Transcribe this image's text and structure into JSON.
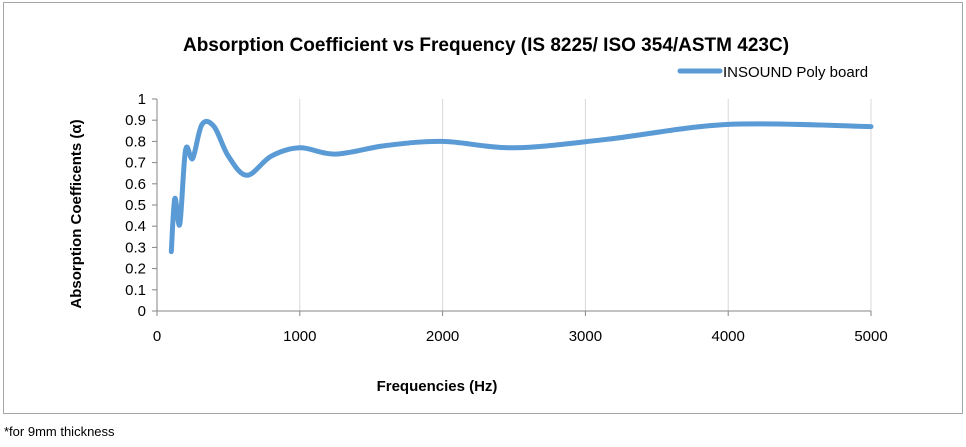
{
  "footnote": "*for 9mm thickness",
  "chart_data": {
    "type": "line",
    "title": "Absorption Coefficient vs Frequency (IS 8225/ ISO 354/ASTM 423C)",
    "xlabel": "Frequencies (Hz)",
    "ylabel": "Absorption  Coefficents (α)",
    "xlim": [
      0,
      5000
    ],
    "ylim": [
      0,
      1
    ],
    "xticks": [
      0,
      1000,
      2000,
      3000,
      4000,
      5000
    ],
    "yticks": [
      0,
      0.1,
      0.2,
      0.3,
      0.4,
      0.5,
      0.6,
      0.7,
      0.8,
      0.9,
      1
    ],
    "ytick_labels": [
      "0",
      "0.1",
      "0.2",
      "0.3",
      "0.4",
      "0.5",
      "0.6",
      "0.7",
      "0.8",
      "0.9",
      "1"
    ],
    "grid": "vertical",
    "legend_position": "top-right",
    "series": [
      {
        "name": "INSOUND Poly board",
        "color": "#5B9BD5",
        "x": [
          100,
          125,
          160,
          200,
          250,
          315,
          400,
          500,
          630,
          800,
          1000,
          1250,
          1600,
          2000,
          2500,
          3150,
          4000,
          5000
        ],
        "y": [
          0.28,
          0.53,
          0.41,
          0.76,
          0.72,
          0.88,
          0.87,
          0.73,
          0.64,
          0.73,
          0.77,
          0.74,
          0.78,
          0.8,
          0.77,
          0.81,
          0.88,
          0.87
        ]
      }
    ]
  }
}
